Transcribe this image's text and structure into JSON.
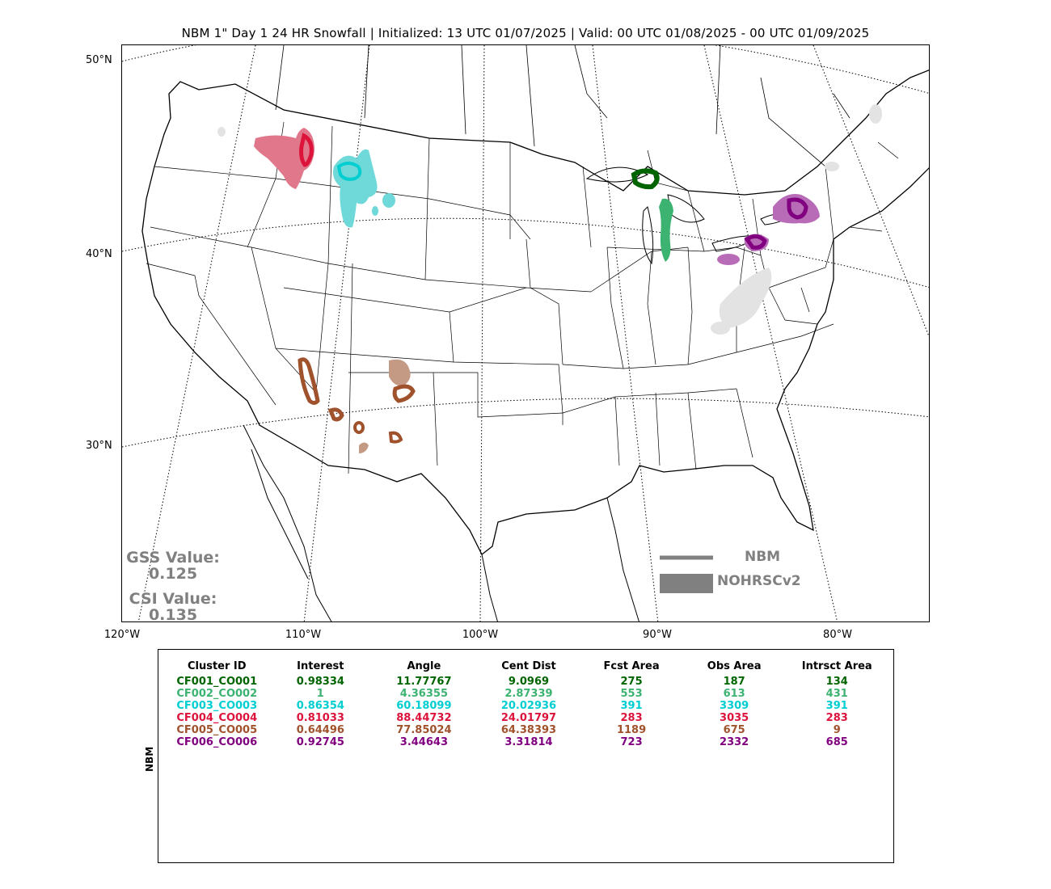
{
  "title": "NBM 1\" Day 1 24 HR Snowfall | Initialized: 13 UTC 01/07/2025 | Valid: 00 UTC 01/08/2025 - 00 UTC 01/09/2025",
  "lat_labels": [
    "50°N",
    "40°N",
    "30°N"
  ],
  "lon_labels": [
    "120°W",
    "110°W",
    "100°W",
    "90°W",
    "80°W"
  ],
  "scores": {
    "gss_label": "GSS Value:",
    "gss_value": "0.125",
    "csi_label": "CSI Value:",
    "csi_value": "0.135"
  },
  "legend": {
    "line_label": "NBM",
    "fill_label": "NOHRSCv2",
    "color": "#808080"
  },
  "side_label": "NBM",
  "table": {
    "headers": [
      "Cluster ID",
      "Interest",
      "Angle",
      "Cent Dist",
      "Fcst Area",
      "Obs Area",
      "Intrsct Area"
    ],
    "rows": [
      {
        "color": "#006400",
        "cells": [
          "CF001_CO001",
          "0.98334",
          "11.77767",
          "9.0969",
          "275",
          "187",
          "134"
        ]
      },
      {
        "color": "#3cb371",
        "cells": [
          "CF002_CO002",
          "1",
          "4.36355",
          "2.87339",
          "553",
          "613",
          "431"
        ]
      },
      {
        "color": "#00ced1",
        "cells": [
          "CF003_CO003",
          "0.86354",
          "60.18099",
          "20.02936",
          "391",
          "3309",
          "391"
        ]
      },
      {
        "color": "#dc143c",
        "cells": [
          "CF004_CO004",
          "0.81033",
          "88.44732",
          "24.01797",
          "283",
          "3035",
          "283"
        ]
      },
      {
        "color": "#a0522d",
        "cells": [
          "CF005_CO005",
          "0.64496",
          "77.85024",
          "64.38393",
          "1189",
          "675",
          "9"
        ]
      },
      {
        "color": "#800080",
        "cells": [
          "CF006_CO006",
          "0.92745",
          "3.44643",
          "3.31814",
          "723",
          "2332",
          "685"
        ]
      }
    ]
  },
  "cluster_colors": {
    "obs_grey": "#e3e3e3",
    "c1_fill": "#006400",
    "c2_fill": "#3cb371",
    "c3_fill": "#6fd9d9",
    "c4_fill": "#e0778a",
    "c5_fill": "#c49a85",
    "c6_fill": "#b86cb8"
  }
}
